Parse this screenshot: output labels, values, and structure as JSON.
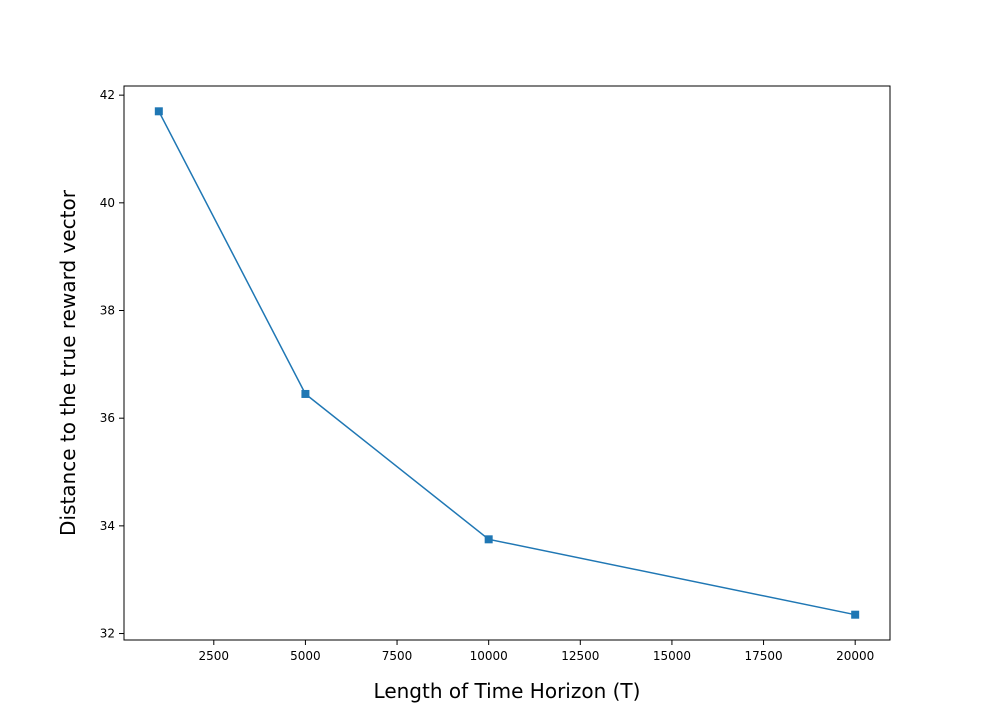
{
  "chart_data": {
    "type": "line",
    "x_label": "Length of Time Horizon (T)",
    "y_label": "Distance to the true reward vector",
    "x": [
      1000,
      5000,
      10000,
      20000
    ],
    "series": [
      {
        "color": "#1f77b4",
        "marker": "square",
        "values": [
          41.7,
          36.45,
          33.75,
          32.35
        ]
      }
    ],
    "xlim": [
      50,
      20950
    ],
    "ylim": [
      31.88,
      42.17
    ],
    "xticks": [
      2500,
      5000,
      7500,
      10000,
      12500,
      15000,
      17500,
      20000
    ],
    "yticks": [
      32,
      34,
      36,
      38,
      40,
      42
    ],
    "grid": false
  }
}
